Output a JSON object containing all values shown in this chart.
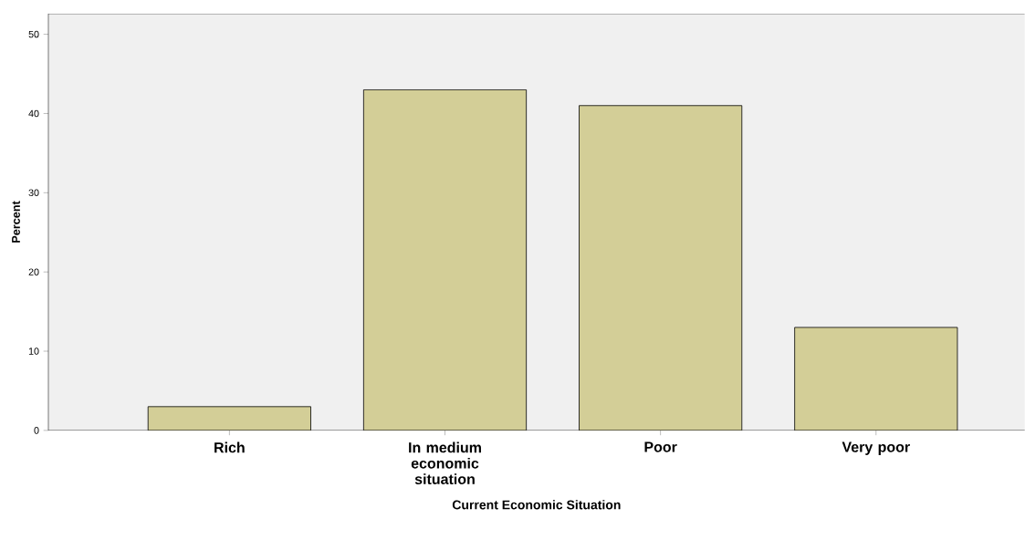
{
  "chart_data": {
    "type": "bar",
    "xlabel": "Current Economic Situation",
    "ylabel": "Percent",
    "categories": [
      "Rich",
      "In medium economic situation",
      "Poor",
      "Very poor"
    ],
    "values": [
      3,
      43,
      41,
      13
    ],
    "color": "#d3ce97",
    "ylim": [
      0,
      52.6
    ],
    "yticks": [
      0,
      10,
      20,
      30,
      40,
      50
    ]
  }
}
